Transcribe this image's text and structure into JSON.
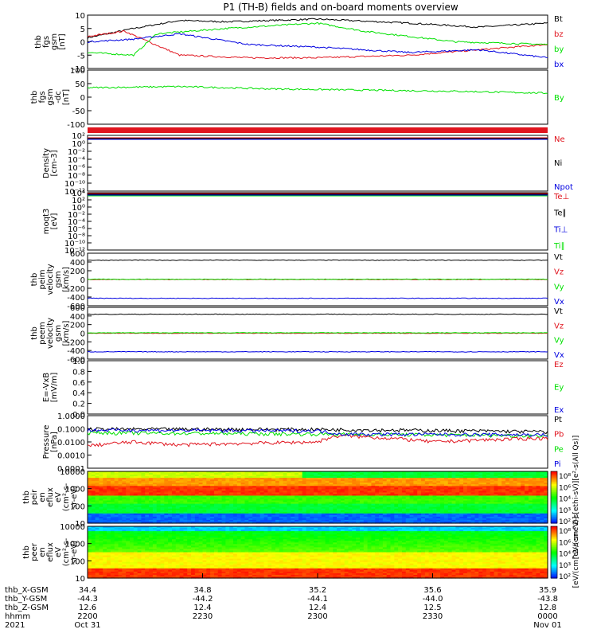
{
  "title": "P1  (TH-B) fields and on-board moments overview",
  "chart_data": [
    {
      "type": "line",
      "panel": "fgs-gsm",
      "ylabel": [
        "thb",
        "fgs",
        "gsm",
        "[nT]"
      ],
      "yticks": [
        "10",
        "5",
        "0",
        "-5",
        "-10"
      ],
      "ylim": [
        -10,
        10
      ],
      "series": [
        {
          "name": "Bt",
          "color": "#000000",
          "approx": [
            [
              0,
              1.5
            ],
            [
              0.1,
              5
            ],
            [
              0.2,
              8
            ],
            [
              0.3,
              7.5
            ],
            [
              0.5,
              8.5
            ],
            [
              0.7,
              7
            ],
            [
              0.85,
              5.5
            ],
            [
              1,
              7
            ]
          ]
        },
        {
          "name": "bz",
          "color": "#e0141e",
          "approx": [
            [
              0,
              2
            ],
            [
              0.08,
              4
            ],
            [
              0.2,
              -5
            ],
            [
              0.35,
              -6
            ],
            [
              0.5,
              -6
            ],
            [
              0.7,
              -5
            ],
            [
              0.85,
              -3
            ],
            [
              1,
              -1
            ]
          ]
        },
        {
          "name": "by",
          "color": "#00e000",
          "approx": [
            [
              0,
              -4
            ],
            [
              0.1,
              -5
            ],
            [
              0.15,
              3
            ],
            [
              0.3,
              5
            ],
            [
              0.5,
              7
            ],
            [
              0.6,
              4
            ],
            [
              0.8,
              0
            ],
            [
              1,
              -1
            ]
          ]
        },
        {
          "name": "bx",
          "color": "#0000e0",
          "approx": [
            [
              0,
              0
            ],
            [
              0.1,
              1
            ],
            [
              0.2,
              3
            ],
            [
              0.35,
              -1
            ],
            [
              0.5,
              -2
            ],
            [
              0.7,
              -4
            ],
            [
              0.85,
              -3
            ],
            [
              1,
              -6
            ]
          ]
        }
      ]
    },
    {
      "type": "line",
      "panel": "fgs-gsm-dc",
      "ylabel": [
        "thb",
        "fgs",
        "gsm",
        "-dc",
        "[nT]"
      ],
      "yticks": [
        "100",
        "50",
        "0",
        "-50",
        "-100"
      ],
      "ylim": [
        -130,
        100
      ],
      "series": [
        {
          "name": "By",
          "color": "#00e000",
          "approx": [
            [
              0,
              25
            ],
            [
              0.2,
              30
            ],
            [
              0.4,
              20
            ],
            [
              0.6,
              15
            ],
            [
              0.8,
              10
            ],
            [
              1,
              2
            ]
          ]
        }
      ]
    },
    {
      "type": "line",
      "panel": "density",
      "ylabel": [
        "Density",
        "[cm-3]"
      ],
      "yticks": [
        "10²",
        "10⁰",
        "10⁻²",
        "10⁻⁴",
        "10⁻⁶",
        "10⁻⁸",
        "10⁻¹⁰",
        "10⁻¹²"
      ],
      "series": [
        {
          "name": "Ne",
          "color": "#e0141e"
        },
        {
          "name": "Ni",
          "color": "#000000"
        },
        {
          "name": "Npot",
          "color": "#0000e0"
        }
      ]
    },
    {
      "type": "line",
      "panel": "temperature",
      "ylabel": [
        "moqt3",
        "[eV]"
      ],
      "yticks": [
        "10⁴",
        "10²",
        "10⁰",
        "10⁻²",
        "10⁻⁴",
        "10⁻⁶",
        "10⁻⁸",
        "10⁻¹⁰",
        "10⁻¹²"
      ],
      "series": [
        {
          "name": "Te⊥",
          "color": "#e0141e"
        },
        {
          "name": "Te∥",
          "color": "#000000"
        },
        {
          "name": "Ti⊥",
          "color": "#0000e0"
        },
        {
          "name": "Ti∥",
          "color": "#00e000"
        }
      ]
    },
    {
      "type": "line",
      "panel": "peim-velocity",
      "ylabel": [
        "thb",
        "peim",
        "velocity",
        "gsm",
        "[km/s]"
      ],
      "yticks": [
        "600",
        "400",
        "200",
        "0",
        "-200",
        "-400",
        "-600"
      ],
      "ylim": [
        -600,
        600
      ],
      "series": [
        {
          "name": "Vt",
          "color": "#000000",
          "value": 440
        },
        {
          "name": "Vz",
          "color": "#e0141e",
          "value": 0
        },
        {
          "name": "Vy",
          "color": "#00e000",
          "value": 5
        },
        {
          "name": "Vx",
          "color": "#0000e0",
          "value": -430
        }
      ]
    },
    {
      "type": "line",
      "panel": "peem-velocity",
      "ylabel": [
        "thb",
        "peem",
        "velocity",
        "gsm",
        "[km/s]"
      ],
      "yticks": [
        "600",
        "400",
        "200",
        "0",
        "-200",
        "-400",
        "-600"
      ],
      "ylim": [
        -600,
        600
      ],
      "series": [
        {
          "name": "Vt",
          "color": "#000000",
          "value": 440
        },
        {
          "name": "Vz",
          "color": "#e0141e",
          "value": 0
        },
        {
          "name": "Vy",
          "color": "#00e000",
          "value": 10
        },
        {
          "name": "Vx",
          "color": "#0000e0",
          "value": -430
        }
      ]
    },
    {
      "type": "line",
      "panel": "efield",
      "ylabel": [
        "E=-VxB",
        "[mV/m]"
      ],
      "yticks": [
        "1.0",
        "0.8",
        "0.6",
        "0.4",
        "0.2",
        "0.0"
      ],
      "ylim": [
        0,
        1
      ],
      "series": [
        {
          "name": "Ez",
          "color": "#e0141e"
        },
        {
          "name": "Ey",
          "color": "#00e000"
        },
        {
          "name": "Ex",
          "color": "#0000e0"
        }
      ]
    },
    {
      "type": "line",
      "panel": "pressure",
      "ylabel": [
        "Pressure",
        "[nPa]"
      ],
      "yticks": [
        "1.0000",
        "0.1000",
        "0.0100",
        "0.0010",
        "0.0001"
      ],
      "ylog": [
        -4,
        0
      ],
      "series": [
        {
          "name": "Pt",
          "color": "#000000",
          "approx": [
            [
              0,
              0.095
            ],
            [
              0.5,
              0.09
            ],
            [
              1,
              0.06
            ]
          ]
        },
        {
          "name": "Pb",
          "color": "#e0141e",
          "approx": [
            [
              0,
              0.005
            ],
            [
              0.1,
              0.01
            ],
            [
              0.2,
              0.006
            ],
            [
              0.5,
              0.01
            ],
            [
              0.55,
              0.03
            ],
            [
              0.75,
              0.01
            ],
            [
              1,
              0.02
            ]
          ]
        },
        {
          "name": "Pe",
          "color": "#00e000",
          "approx": [
            [
              0,
              0.05
            ],
            [
              0.5,
              0.04
            ],
            [
              1,
              0.03
            ]
          ]
        },
        {
          "name": "Pi",
          "color": "#0000e0",
          "approx": [
            [
              0,
              0.08
            ],
            [
              0.5,
              0.07
            ],
            [
              0.55,
              0.04
            ],
            [
              1,
              0.035
            ]
          ]
        }
      ]
    },
    {
      "type": "heatmap",
      "panel": "peir-eflux",
      "ylabel": [
        "thb",
        "peir",
        "en",
        "eflux",
        "eV",
        "(cm²-s-",
        "sr-eV)"
      ],
      "yticks": [
        "10000",
        "1000",
        "100",
        "10"
      ],
      "ylog": [
        0.5,
        4.3
      ],
      "cbar_ticks": [
        "10⁸",
        "10⁶",
        "10⁴",
        "10³",
        "10²"
      ],
      "cbar_label": "[eV/(cm^2-s[ethi-sV)][e²-s(All Qs)]"
    },
    {
      "type": "heatmap",
      "panel": "peer-eflux",
      "ylabel": [
        "thb",
        "peer",
        "en",
        "eflux",
        "eV",
        "(cm²-s-",
        "sr-eV)"
      ],
      "yticks": [
        "10000",
        "1000",
        "100",
        "10"
      ],
      "ylog": [
        0.5,
        4.3
      ],
      "cbar_ticks": [
        "10⁸",
        "10⁶",
        "10⁴",
        "10³",
        "10²"
      ],
      "cbar_label": "[eV/(cm^2-s-sr-eV)]"
    }
  ],
  "footer": {
    "rows": [
      {
        "label": "thb_X-GSM",
        "values": [
          "34.4",
          "34.8",
          "35.2",
          "35.6",
          "35.9"
        ]
      },
      {
        "label": "thb_Y-GSM",
        "values": [
          "-44.3",
          "-44.2",
          "-44.1",
          "-44.0",
          "-43.8"
        ]
      },
      {
        "label": "thb_Z-GSM",
        "values": [
          "12.6",
          "12.4",
          "12.4",
          "12.5",
          "12.8"
        ]
      },
      {
        "label": "hhmm",
        "values": [
          "2200",
          "2230",
          "2300",
          "2330",
          "0000"
        ]
      },
      {
        "label": "2021",
        "values": [
          "Oct 31",
          "",
          "",
          "",
          "Nov 01"
        ]
      }
    ]
  }
}
